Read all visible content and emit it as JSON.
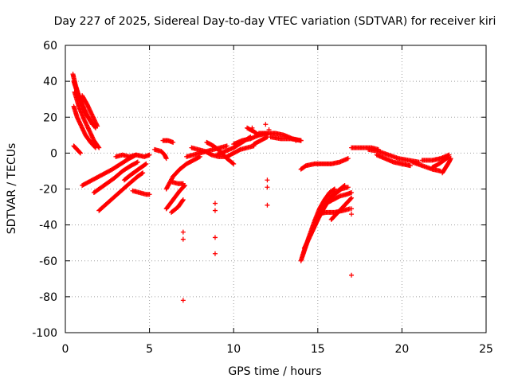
{
  "chart_data": {
    "type": "scatter",
    "title": "Day 227 of 2025, Sidereal Day-to-day VTEC variation (SDTVAR) for receiver kiri",
    "xlabel": "GPS time / hours",
    "ylabel": "SDTVAR / TECUs",
    "xlim": [
      0,
      25
    ],
    "ylim": [
      -100,
      60
    ],
    "xticks": [
      0,
      5,
      10,
      15,
      20,
      25
    ],
    "yticks": [
      -100,
      -80,
      -60,
      -40,
      -20,
      0,
      20,
      40,
      60
    ],
    "grid": true,
    "marker": "+",
    "color": "#ff0000",
    "tracks": [
      [
        [
          0.45,
          44
        ],
        [
          0.6,
          38
        ],
        [
          0.8,
          32
        ],
        [
          1.0,
          27
        ],
        [
          1.3,
          21
        ],
        [
          1.6,
          16
        ]
      ],
      [
        [
          0.5,
          40
        ],
        [
          0.7,
          34
        ],
        [
          0.95,
          28
        ],
        [
          1.2,
          22
        ],
        [
          1.5,
          18
        ],
        [
          1.8,
          14
        ]
      ],
      [
        [
          0.55,
          34
        ],
        [
          0.8,
          26
        ],
        [
          1.1,
          19
        ],
        [
          1.4,
          13
        ],
        [
          1.7,
          7
        ],
        [
          2.0,
          3
        ]
      ],
      [
        [
          0.5,
          26
        ],
        [
          0.7,
          20
        ],
        [
          0.9,
          16
        ],
        [
          1.2,
          10
        ],
        [
          1.5,
          6
        ],
        [
          1.8,
          3
        ]
      ],
      [
        [
          0.5,
          4
        ],
        [
          0.7,
          2
        ],
        [
          0.9,
          0
        ]
      ],
      [
        [
          1.0,
          32
        ],
        [
          1.3,
          27
        ],
        [
          1.6,
          21
        ],
        [
          1.9,
          15
        ]
      ],
      [
        [
          1.0,
          -18
        ],
        [
          1.6,
          -15
        ],
        [
          2.2,
          -12
        ],
        [
          2.8,
          -9
        ],
        [
          3.3,
          -6
        ],
        [
          3.8,
          -3
        ],
        [
          4.2,
          -1
        ]
      ],
      [
        [
          1.7,
          -22
        ],
        [
          2.3,
          -18
        ],
        [
          2.9,
          -14
        ],
        [
          3.4,
          -10
        ],
        [
          3.9,
          -7
        ],
        [
          4.3,
          -5
        ]
      ],
      [
        [
          2.0,
          -32
        ],
        [
          2.6,
          -27
        ],
        [
          3.2,
          -22
        ],
        [
          3.8,
          -17
        ],
        [
          4.3,
          -13
        ],
        [
          4.6,
          -11
        ]
      ],
      [
        [
          3.0,
          -2
        ],
        [
          3.4,
          -1
        ],
        [
          3.8,
          -2
        ],
        [
          4.2,
          -1
        ],
        [
          4.7,
          -2
        ],
        [
          5.0,
          -1
        ]
      ],
      [
        [
          3.5,
          -15
        ],
        [
          3.9,
          -12
        ],
        [
          4.2,
          -10
        ],
        [
          4.5,
          -8
        ],
        [
          4.8,
          -6
        ]
      ],
      [
        [
          4.0,
          -21
        ],
        [
          4.4,
          -22
        ],
        [
          4.8,
          -23
        ],
        [
          5.0,
          -23
        ]
      ],
      [
        [
          5.3,
          2
        ],
        [
          5.7,
          1
        ],
        [
          5.9,
          -1
        ],
        [
          6.0,
          -3
        ]
      ],
      [
        [
          5.8,
          7
        ],
        [
          6.1,
          7
        ],
        [
          6.4,
          6
        ]
      ],
      [
        [
          6.0,
          -20
        ],
        [
          6.4,
          -13
        ],
        [
          6.8,
          -9
        ],
        [
          7.2,
          -6
        ],
        [
          7.6,
          -4
        ],
        [
          8.0,
          -2
        ]
      ],
      [
        [
          6.3,
          -16
        ],
        [
          6.7,
          -17
        ],
        [
          7.0,
          -17
        ]
      ],
      [
        [
          6.0,
          -31
        ],
        [
          6.4,
          -26
        ],
        [
          6.8,
          -21
        ],
        [
          7.1,
          -18
        ]
      ],
      [
        [
          6.3,
          -33
        ],
        [
          6.7,
          -30
        ],
        [
          7.0,
          -26
        ]
      ],
      [
        [
          7.5,
          3
        ],
        [
          7.9,
          2
        ],
        [
          8.3,
          1
        ],
        [
          8.7,
          -1
        ],
        [
          9.1,
          -2
        ],
        [
          9.5,
          -2
        ]
      ],
      [
        [
          7.2,
          -2
        ],
        [
          7.6,
          -1
        ],
        [
          8.0,
          0
        ],
        [
          8.4,
          1
        ],
        [
          8.8,
          2
        ],
        [
          9.2,
          3
        ],
        [
          9.6,
          4
        ]
      ],
      [
        [
          8.4,
          6
        ],
        [
          8.8,
          4
        ],
        [
          9.2,
          1
        ],
        [
          9.6,
          -3
        ],
        [
          10.0,
          -6
        ]
      ],
      [
        [
          9.6,
          -2
        ],
        [
          10.0,
          0
        ],
        [
          10.4,
          2
        ],
        [
          10.8,
          3
        ],
        [
          11.2,
          4
        ]
      ],
      [
        [
          10.0,
          5
        ],
        [
          10.5,
          7
        ],
        [
          11.0,
          8
        ],
        [
          11.5,
          10
        ],
        [
          12.0,
          11
        ]
      ],
      [
        [
          9.0,
          -1
        ],
        [
          9.5,
          1
        ],
        [
          10.0,
          3
        ],
        [
          10.5,
          6
        ],
        [
          11.0,
          9
        ]
      ],
      [
        [
          10.8,
          14
        ],
        [
          11.2,
          12
        ],
        [
          11.5,
          10
        ]
      ],
      [
        [
          11.5,
          11
        ],
        [
          12.0,
          11
        ],
        [
          12.5,
          11
        ],
        [
          13.0,
          10
        ],
        [
          13.5,
          8
        ],
        [
          14.0,
          7
        ]
      ],
      [
        [
          12.2,
          9
        ],
        [
          12.8,
          8
        ],
        [
          13.4,
          8
        ],
        [
          14.0,
          7
        ]
      ],
      [
        [
          11.2,
          5
        ],
        [
          11.6,
          7
        ],
        [
          12.0,
          9
        ]
      ],
      [
        [
          14.0,
          -9
        ],
        [
          14.3,
          -7
        ],
        [
          14.8,
          -6
        ],
        [
          15.3,
          -6
        ],
        [
          15.8,
          -6
        ],
        [
          16.3,
          -5
        ],
        [
          16.8,
          -3
        ]
      ],
      [
        [
          14.0,
          -60
        ],
        [
          14.2,
          -54
        ],
        [
          14.5,
          -46
        ],
        [
          14.8,
          -38
        ],
        [
          15.1,
          -31
        ],
        [
          15.4,
          -26
        ],
        [
          15.7,
          -22
        ],
        [
          16.0,
          -20
        ]
      ],
      [
        [
          14.1,
          -57
        ],
        [
          14.4,
          -49
        ],
        [
          14.8,
          -41
        ],
        [
          15.2,
          -33
        ],
        [
          15.6,
          -27
        ],
        [
          16.0,
          -23
        ],
        [
          16.4,
          -20
        ],
        [
          16.8,
          -19
        ]
      ],
      [
        [
          14.2,
          -53
        ],
        [
          14.6,
          -45
        ],
        [
          15.0,
          -37
        ],
        [
          15.4,
          -30
        ],
        [
          15.8,
          -24
        ],
        [
          16.2,
          -21
        ],
        [
          16.6,
          -18
        ]
      ],
      [
        [
          15.0,
          -34
        ],
        [
          15.5,
          -33
        ],
        [
          16.0,
          -33
        ],
        [
          16.5,
          -32
        ],
        [
          16.9,
          -31
        ]
      ],
      [
        [
          15.8,
          -37
        ],
        [
          16.1,
          -34
        ],
        [
          16.4,
          -31
        ],
        [
          16.7,
          -28
        ],
        [
          17.0,
          -25
        ]
      ],
      [
        [
          15.5,
          -28
        ],
        [
          15.9,
          -26
        ],
        [
          16.3,
          -24
        ],
        [
          16.7,
          -23
        ],
        [
          17.0,
          -22
        ]
      ],
      [
        [
          17.0,
          3
        ],
        [
          17.4,
          3
        ],
        [
          17.8,
          3
        ],
        [
          18.2,
          3
        ],
        [
          18.6,
          2
        ]
      ],
      [
        [
          18.0,
          2
        ],
        [
          18.6,
          1
        ],
        [
          19.2,
          -1
        ],
        [
          19.8,
          -3
        ],
        [
          20.4,
          -4
        ],
        [
          21.0,
          -5
        ]
      ],
      [
        [
          18.5,
          -1
        ],
        [
          19.0,
          -3
        ],
        [
          19.5,
          -5
        ],
        [
          20.0,
          -6
        ],
        [
          20.5,
          -7
        ]
      ],
      [
        [
          20.6,
          -5
        ],
        [
          21.2,
          -7
        ],
        [
          21.8,
          -9
        ],
        [
          22.3,
          -10
        ]
      ],
      [
        [
          21.2,
          -4
        ],
        [
          21.8,
          -4
        ],
        [
          22.3,
          -3
        ],
        [
          22.8,
          -1
        ]
      ],
      [
        [
          21.8,
          -8
        ],
        [
          22.2,
          -6
        ],
        [
          22.5,
          -4
        ],
        [
          22.8,
          -2
        ]
      ],
      [
        [
          22.4,
          -11
        ],
        [
          22.6,
          -8
        ],
        [
          22.8,
          -5
        ],
        [
          22.9,
          -3
        ]
      ]
    ],
    "isolated_points": [
      [
        7.0,
        -82
      ],
      [
        7.0,
        -48
      ],
      [
        7.0,
        -44
      ],
      [
        8.9,
        -28
      ],
      [
        8.9,
        -32
      ],
      [
        8.9,
        -47
      ],
      [
        8.9,
        -56
      ],
      [
        12.0,
        -19
      ],
      [
        12.0,
        -29
      ],
      [
        12.0,
        -15
      ],
      [
        11.9,
        16
      ],
      [
        12.1,
        13
      ],
      [
        12.0,
        10
      ],
      [
        17.0,
        -68
      ],
      [
        17.0,
        -31
      ],
      [
        17.0,
        -34
      ],
      [
        6.0,
        7
      ],
      [
        13.7,
        7
      ],
      [
        11.1,
        14
      ]
    ]
  }
}
